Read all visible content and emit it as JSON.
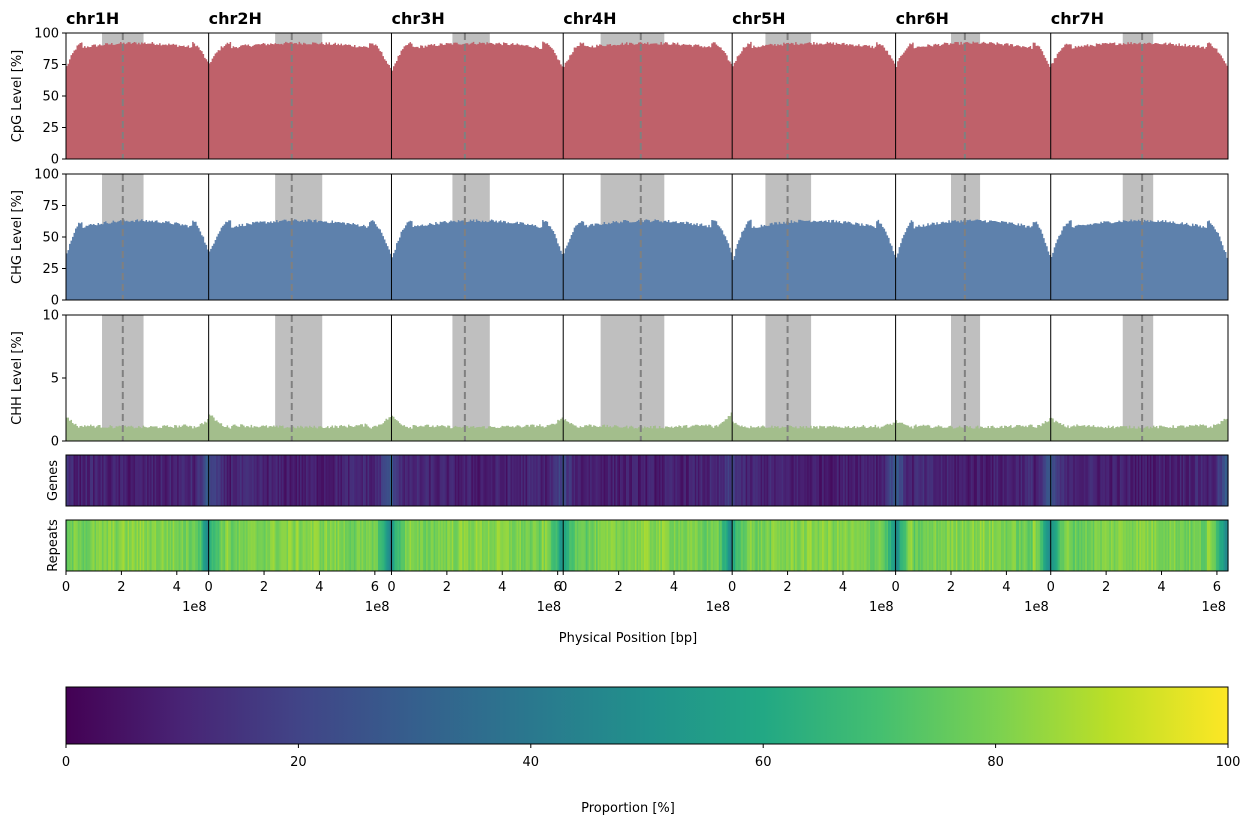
{
  "chart_data": {
    "type": "bar",
    "xlabel": "Physical Position [bp]",
    "x_offset_label": "1e8",
    "chromosomes": [
      {
        "name": "chr1H",
        "length_1e8": 5.15,
        "ticks": [
          0,
          2,
          4
        ],
        "centromere": 2.05,
        "pericentromere": [
          1.3,
          2.8
        ],
        "cpg_edges": [
          72,
          75
        ],
        "chg_edges": [
          35,
          38
        ],
        "chh_edges": [
          2.0,
          1.7
        ],
        "genes_edges": [
          14,
          30
        ],
        "repeats_edges": [
          72,
          45
        ]
      },
      {
        "name": "chr2H",
        "length_1e8": 6.6,
        "ticks": [
          0,
          2,
          4,
          6
        ],
        "centromere": 3.0,
        "pericentromere": [
          2.4,
          4.1
        ],
        "cpg_edges": [
          75,
          70
        ],
        "chg_edges": [
          36,
          35
        ],
        "chh_edges": [
          2.2,
          2.0
        ],
        "genes_edges": [
          25,
          30
        ],
        "repeats_edges": [
          60,
          40
        ]
      },
      {
        "name": "chr3H",
        "length_1e8": 6.2,
        "ticks": [
          0,
          2,
          4,
          6
        ],
        "centromere": 2.65,
        "pericentromere": [
          2.2,
          3.55
        ],
        "cpg_edges": [
          70,
          72
        ],
        "chg_edges": [
          32,
          35
        ],
        "chh_edges": [
          2.0,
          1.9
        ],
        "genes_edges": [
          25,
          22
        ],
        "repeats_edges": [
          55,
          50
        ]
      },
      {
        "name": "chr4H",
        "length_1e8": 6.1,
        "ticks": [
          0,
          2,
          4
        ],
        "centromere": 2.8,
        "pericentromere": [
          1.35,
          3.65
        ],
        "cpg_edges": [
          72,
          74
        ],
        "chg_edges": [
          35,
          37
        ],
        "chh_edges": [
          1.8,
          2.3
        ],
        "genes_edges": [
          20,
          18
        ],
        "repeats_edges": [
          55,
          40
        ]
      },
      {
        "name": "chr5H",
        "length_1e8": 5.9,
        "ticks": [
          0,
          2,
          4
        ],
        "centromere": 2.0,
        "pericentromere": [
          1.2,
          2.85
        ],
        "cpg_edges": [
          73,
          74
        ],
        "chg_edges": [
          30,
          34
        ],
        "chh_edges": [
          1.5,
          1.5
        ],
        "genes_edges": [
          20,
          30
        ],
        "repeats_edges": [
          60,
          50
        ]
      },
      {
        "name": "chr6H",
        "length_1e8": 5.6,
        "ticks": [
          0,
          2,
          4
        ],
        "centromere": 2.5,
        "pericentromere": [
          2.0,
          3.05
        ],
        "cpg_edges": [
          73,
          72
        ],
        "chg_edges": [
          32,
          34
        ],
        "chh_edges": [
          1.6,
          1.8
        ],
        "genes_edges": [
          30,
          28
        ],
        "repeats_edges": [
          45,
          45
        ]
      },
      {
        "name": "chr7H",
        "length_1e8": 6.4,
        "ticks": [
          0,
          2,
          4,
          6
        ],
        "centromere": 3.3,
        "pericentromere": [
          2.6,
          3.7
        ],
        "cpg_edges": [
          74,
          72
        ],
        "chg_edges": [
          33,
          32
        ],
        "chh_edges": [
          1.8,
          1.9
        ],
        "genes_edges": [
          25,
          30
        ],
        "repeats_edges": [
          50,
          45
        ]
      }
    ],
    "tracks": [
      {
        "key": "cpg",
        "ylabel": "CpG Level [%]",
        "kind": "bars",
        "ylim": [
          0,
          100
        ],
        "yticks": [
          0,
          25,
          50,
          75,
          100
        ],
        "color": "#bf616a",
        "plateau": 92
      },
      {
        "key": "chg",
        "ylabel": "CHG Level [%]",
        "kind": "bars",
        "ylim": [
          0,
          100
        ],
        "yticks": [
          0,
          25,
          50,
          75,
          100
        ],
        "color": "#5e81ac",
        "plateau": 63
      },
      {
        "key": "chh",
        "ylabel": "CHH Level [%]",
        "kind": "bars",
        "ylim": [
          0,
          10
        ],
        "yticks": [
          0,
          5,
          10
        ],
        "color": "#a3be8c",
        "plateau": 1.1
      },
      {
        "key": "genes",
        "ylabel": "Genes",
        "kind": "heatmap",
        "plateau": 8
      },
      {
        "key": "repeats",
        "ylabel": "Repeats",
        "kind": "heatmap",
        "plateau": 82
      }
    ],
    "colorbar": {
      "label": "Proportion [%]",
      "min": 0,
      "max": 100,
      "ticks": [
        0,
        20,
        40,
        60,
        80,
        100
      ],
      "colormap": "viridis"
    },
    "colors": {
      "centromere_line": "#808080",
      "pericentromere_band": "#bfbfbf"
    }
  }
}
